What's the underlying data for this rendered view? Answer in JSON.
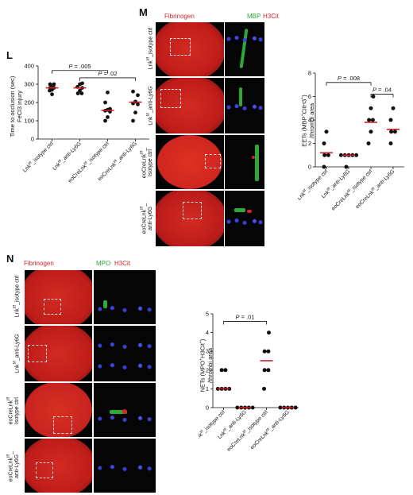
{
  "panels": {
    "L": {
      "label": "L",
      "ylabel_line1": "Time to occlusion (sec)",
      "ylabel_line2": "FeCl3 injury",
      "chart_data": {
        "type": "scatter",
        "categories": [
          "Lnkf/f_isotype ctrl",
          "Lnkf/f_anti-Ly6G",
          "eoCreLnkf/f_isotype ctrl",
          "eoCreLnkf/f_anti-Ly6G"
        ],
        "category_parts": [
          [
            "Lnk",
            "f/f",
            "_isotype ctrl"
          ],
          [
            "Lnk",
            "f/f",
            "_anti-Ly6G"
          ],
          [
            "eoCreLnk",
            "f/f",
            "_isotype ctrl"
          ],
          [
            "eoCreLnk",
            "f/f",
            "_anti-Ly6G"
          ]
        ],
        "ylim": [
          0,
          400
        ],
        "yticks": [
          "0",
          "100",
          "200",
          "300",
          "400"
        ],
        "yticks_values": [
          0,
          100,
          200,
          300,
          400
        ],
        "points": [
          [
            265,
            270,
            280,
            280,
            285,
            300,
            300,
            245
          ],
          [
            250,
            265,
            280,
            285,
            300,
            305,
            250
          ],
          [
            100,
            120,
            150,
            155,
            160,
            165,
            200,
            255
          ],
          [
            100,
            145,
            190,
            195,
            205,
            240,
            260
          ]
        ],
        "means": [
          280,
          280,
          157,
          202
        ],
        "mean_color": "#cc1f2a",
        "comparisons": [
          {
            "from": 0,
            "to": 2,
            "label": "P = .005",
            "y": 375
          },
          {
            "from": 1,
            "to": 3,
            "label": "P = .02",
            "y": 335
          }
        ]
      }
    },
    "M": {
      "label": "M",
      "channels": [
        "Fibrinogen",
        "MBP",
        "H3Cit"
      ],
      "channel_colors": [
        "#d4232d",
        "#2ea836",
        "#d4232d"
      ],
      "row_labels": [
        [
          "Lnk",
          "f/f",
          "_isotype ctrl"
        ],
        [
          "Lnk",
          "f/f",
          "_anti-Ly6G"
        ],
        [
          "eoCreLnk",
          "f/f",
          "_"
        ],
        [
          "eoCreLnk",
          "f/f",
          "_"
        ]
      ],
      "row_label_line2": [
        "",
        "",
        "Isotype ctrl",
        "anti-Ly6G"
      ],
      "ylabel_line1": "EETs (MBP",
      "ylabel_sup1": "+",
      "ylabel_mid": "CitH3",
      "ylabel_sup2": "+",
      "ylabel_end": ")",
      "ylabel_line2": "/thrombi area",
      "chart_data": {
        "type": "scatter",
        "categories": [
          "Lnkf/f_isotype ctrl",
          "Lnkf/f_anti-Ly6G",
          "eoCreLnkf/f_isotype ctrl",
          "eoCreLnkf/f_anti-Ly6G"
        ],
        "category_parts": [
          [
            "Lnk",
            "f/f",
            "_isotype ctrl"
          ],
          [
            "Lnk",
            "f/f",
            "_anti-Ly6G"
          ],
          [
            "eoCreLnk",
            "f/f",
            "_isotype ctrl"
          ],
          [
            "eoCreLnk",
            "f/f",
            "_anti-Ly6G"
          ]
        ],
        "ylim": [
          0,
          8
        ],
        "yticks": [
          "0",
          "2",
          "4",
          "6",
          "8"
        ],
        "yticks_values": [
          0,
          2,
          4,
          6,
          8
        ],
        "points": [
          [
            0,
            1,
            1,
            2,
            3
          ],
          [
            0,
            1,
            1,
            1,
            1,
            1
          ],
          [
            2,
            3,
            4,
            4,
            5,
            6
          ],
          [
            2,
            3,
            3,
            4,
            5
          ]
        ],
        "means": [
          1.2,
          1.0,
          3.8,
          3.2
        ],
        "mean_color": "#cc1f2a",
        "comparisons": [
          {
            "from": 0,
            "to": 2,
            "label": "P = .008",
            "y": 7.2
          },
          {
            "from": 2,
            "to": 3,
            "label": "P = .04",
            "y": 6.2
          }
        ]
      }
    },
    "N": {
      "label": "N",
      "channels": [
        "Fibrinogen",
        "MPO",
        "H3Cit"
      ],
      "channel_colors": [
        "#d4232d",
        "#2ea836",
        "#d4232d"
      ],
      "row_labels": [
        [
          "Lnk",
          "f/f",
          "_isotype ctrl"
        ],
        [
          "Lnk",
          "f/f",
          "_anti-Ly6G"
        ],
        [
          "eoCreLnk",
          "f/f",
          ""
        ],
        [
          "eoCreLnk",
          "f/f",
          "_"
        ]
      ],
      "row_label_line2": [
        "",
        "",
        "Isotype ctrl",
        "anti-Ly6G"
      ],
      "ylabel_line1": "NETs (MPO",
      "ylabel_sup1": "+",
      "ylabel_mid": "H3Cit",
      "ylabel_sup2": "+",
      "ylabel_end": ")",
      "ylabel_line2": "/thrombi area",
      "chart_data": {
        "type": "scatter",
        "categories": [
          "Lnkf/f_isotype ctrl",
          "Lnkf/f_anti-Ly6G",
          "eoCreLnkf/f_isotype ctrl",
          "eoCreLnkf/f_anti-Ly6G"
        ],
        "category_parts": [
          [
            "Lnk",
            "f/f",
            "_isotype ctrl"
          ],
          [
            "Lnk",
            "f/f",
            "_anti-Ly6G"
          ],
          [
            "eoCreLnk",
            "f/f",
            "_isotype ctrl"
          ],
          [
            "eoCreLnk",
            "f/f",
            "_anti-Ly6G"
          ]
        ],
        "ylim": [
          0,
          5
        ],
        "yticks": [
          "0",
          "1",
          "2",
          "3",
          "4",
          "5"
        ],
        "yticks_values": [
          0,
          1,
          2,
          3,
          4,
          5
        ],
        "points": [
          [
            1,
            1,
            1,
            1,
            2,
            2
          ],
          [
            0,
            0,
            0,
            0,
            0
          ],
          [
            1,
            2,
            2,
            3,
            3,
            4
          ],
          [
            0,
            0,
            0,
            0,
            0
          ]
        ],
        "means": [
          1.0,
          0,
          2.5,
          0
        ],
        "mean_color": "#cc1f2a",
        "comparisons": [
          {
            "from": 0,
            "to": 2,
            "label": "P = .01",
            "y": 4.6
          }
        ]
      }
    }
  }
}
